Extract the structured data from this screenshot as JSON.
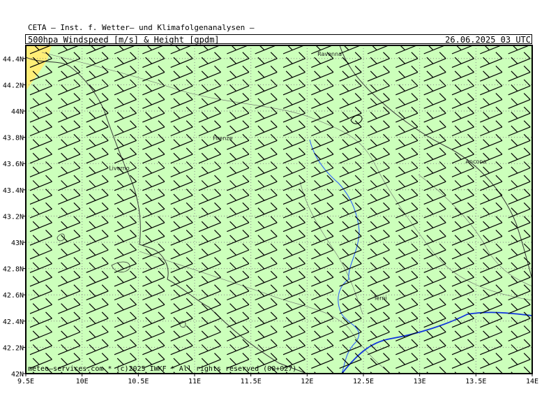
{
  "header": {
    "line1": "CETA – Inst. f. Wetter– und Klimafolgenanalysen –",
    "line2": "500hpa Windspeed [m/s] & Height [gpdm]",
    "datetime": "26.06.2025 03 UTC"
  },
  "map": {
    "lon_range": [
      9.5,
      14.0
    ],
    "lat_range": [
      42.0,
      44.5
    ],
    "lon_ticks": [
      {
        "lon": 9.5,
        "label": "9.5E"
      },
      {
        "lon": 10.0,
        "label": "10E"
      },
      {
        "lon": 10.5,
        "label": "10.5E"
      },
      {
        "lon": 11.0,
        "label": "11E"
      },
      {
        "lon": 11.5,
        "label": "11.5E"
      },
      {
        "lon": 12.0,
        "label": "12E"
      },
      {
        "lon": 12.5,
        "label": "12.5E"
      },
      {
        "lon": 13.0,
        "label": "13E"
      },
      {
        "lon": 13.5,
        "label": "13.5E"
      },
      {
        "lon": 14.0,
        "label": "14E"
      }
    ],
    "lat_ticks": [
      {
        "lat": 42.0,
        "label": "42N"
      },
      {
        "lat": 42.2,
        "label": "42.2N"
      },
      {
        "lat": 42.4,
        "label": "42.4N"
      },
      {
        "lat": 42.6,
        "label": "42.6N"
      },
      {
        "lat": 42.8,
        "label": "42.8N"
      },
      {
        "lat": 43.0,
        "label": "43N"
      },
      {
        "lat": 43.2,
        "label": "43.2N"
      },
      {
        "lat": 43.4,
        "label": "43.4N"
      },
      {
        "lat": 43.6,
        "label": "43.6N"
      },
      {
        "lat": 43.8,
        "label": "43.8N"
      },
      {
        "lat": 44.0,
        "label": "44N"
      },
      {
        "lat": 44.2,
        "label": "44.2N"
      },
      {
        "lat": 44.4,
        "label": "44.4N"
      }
    ],
    "cities": [
      {
        "name": "Ravenna",
        "lon": 12.2,
        "lat": 44.42
      },
      {
        "name": "Firenze",
        "lon": 11.25,
        "lat": 43.78
      },
      {
        "name": "Livorno",
        "lon": 10.33,
        "lat": 43.55
      },
      {
        "name": "Ancona",
        "lon": 13.5,
        "lat": 43.6
      },
      {
        "name": "Terni",
        "lon": 12.65,
        "lat": 42.56
      }
    ],
    "colors": {
      "land_fill": "#ccffbb",
      "yellow_band": "#ffee77",
      "contour": "#1133dd",
      "river": "#2255ff",
      "coast": "#333333",
      "barb": "#000000",
      "grid": "#888888"
    },
    "footer": "meteo–services.com * (c)2025 IWKF * All rights reserved (00+027)"
  }
}
